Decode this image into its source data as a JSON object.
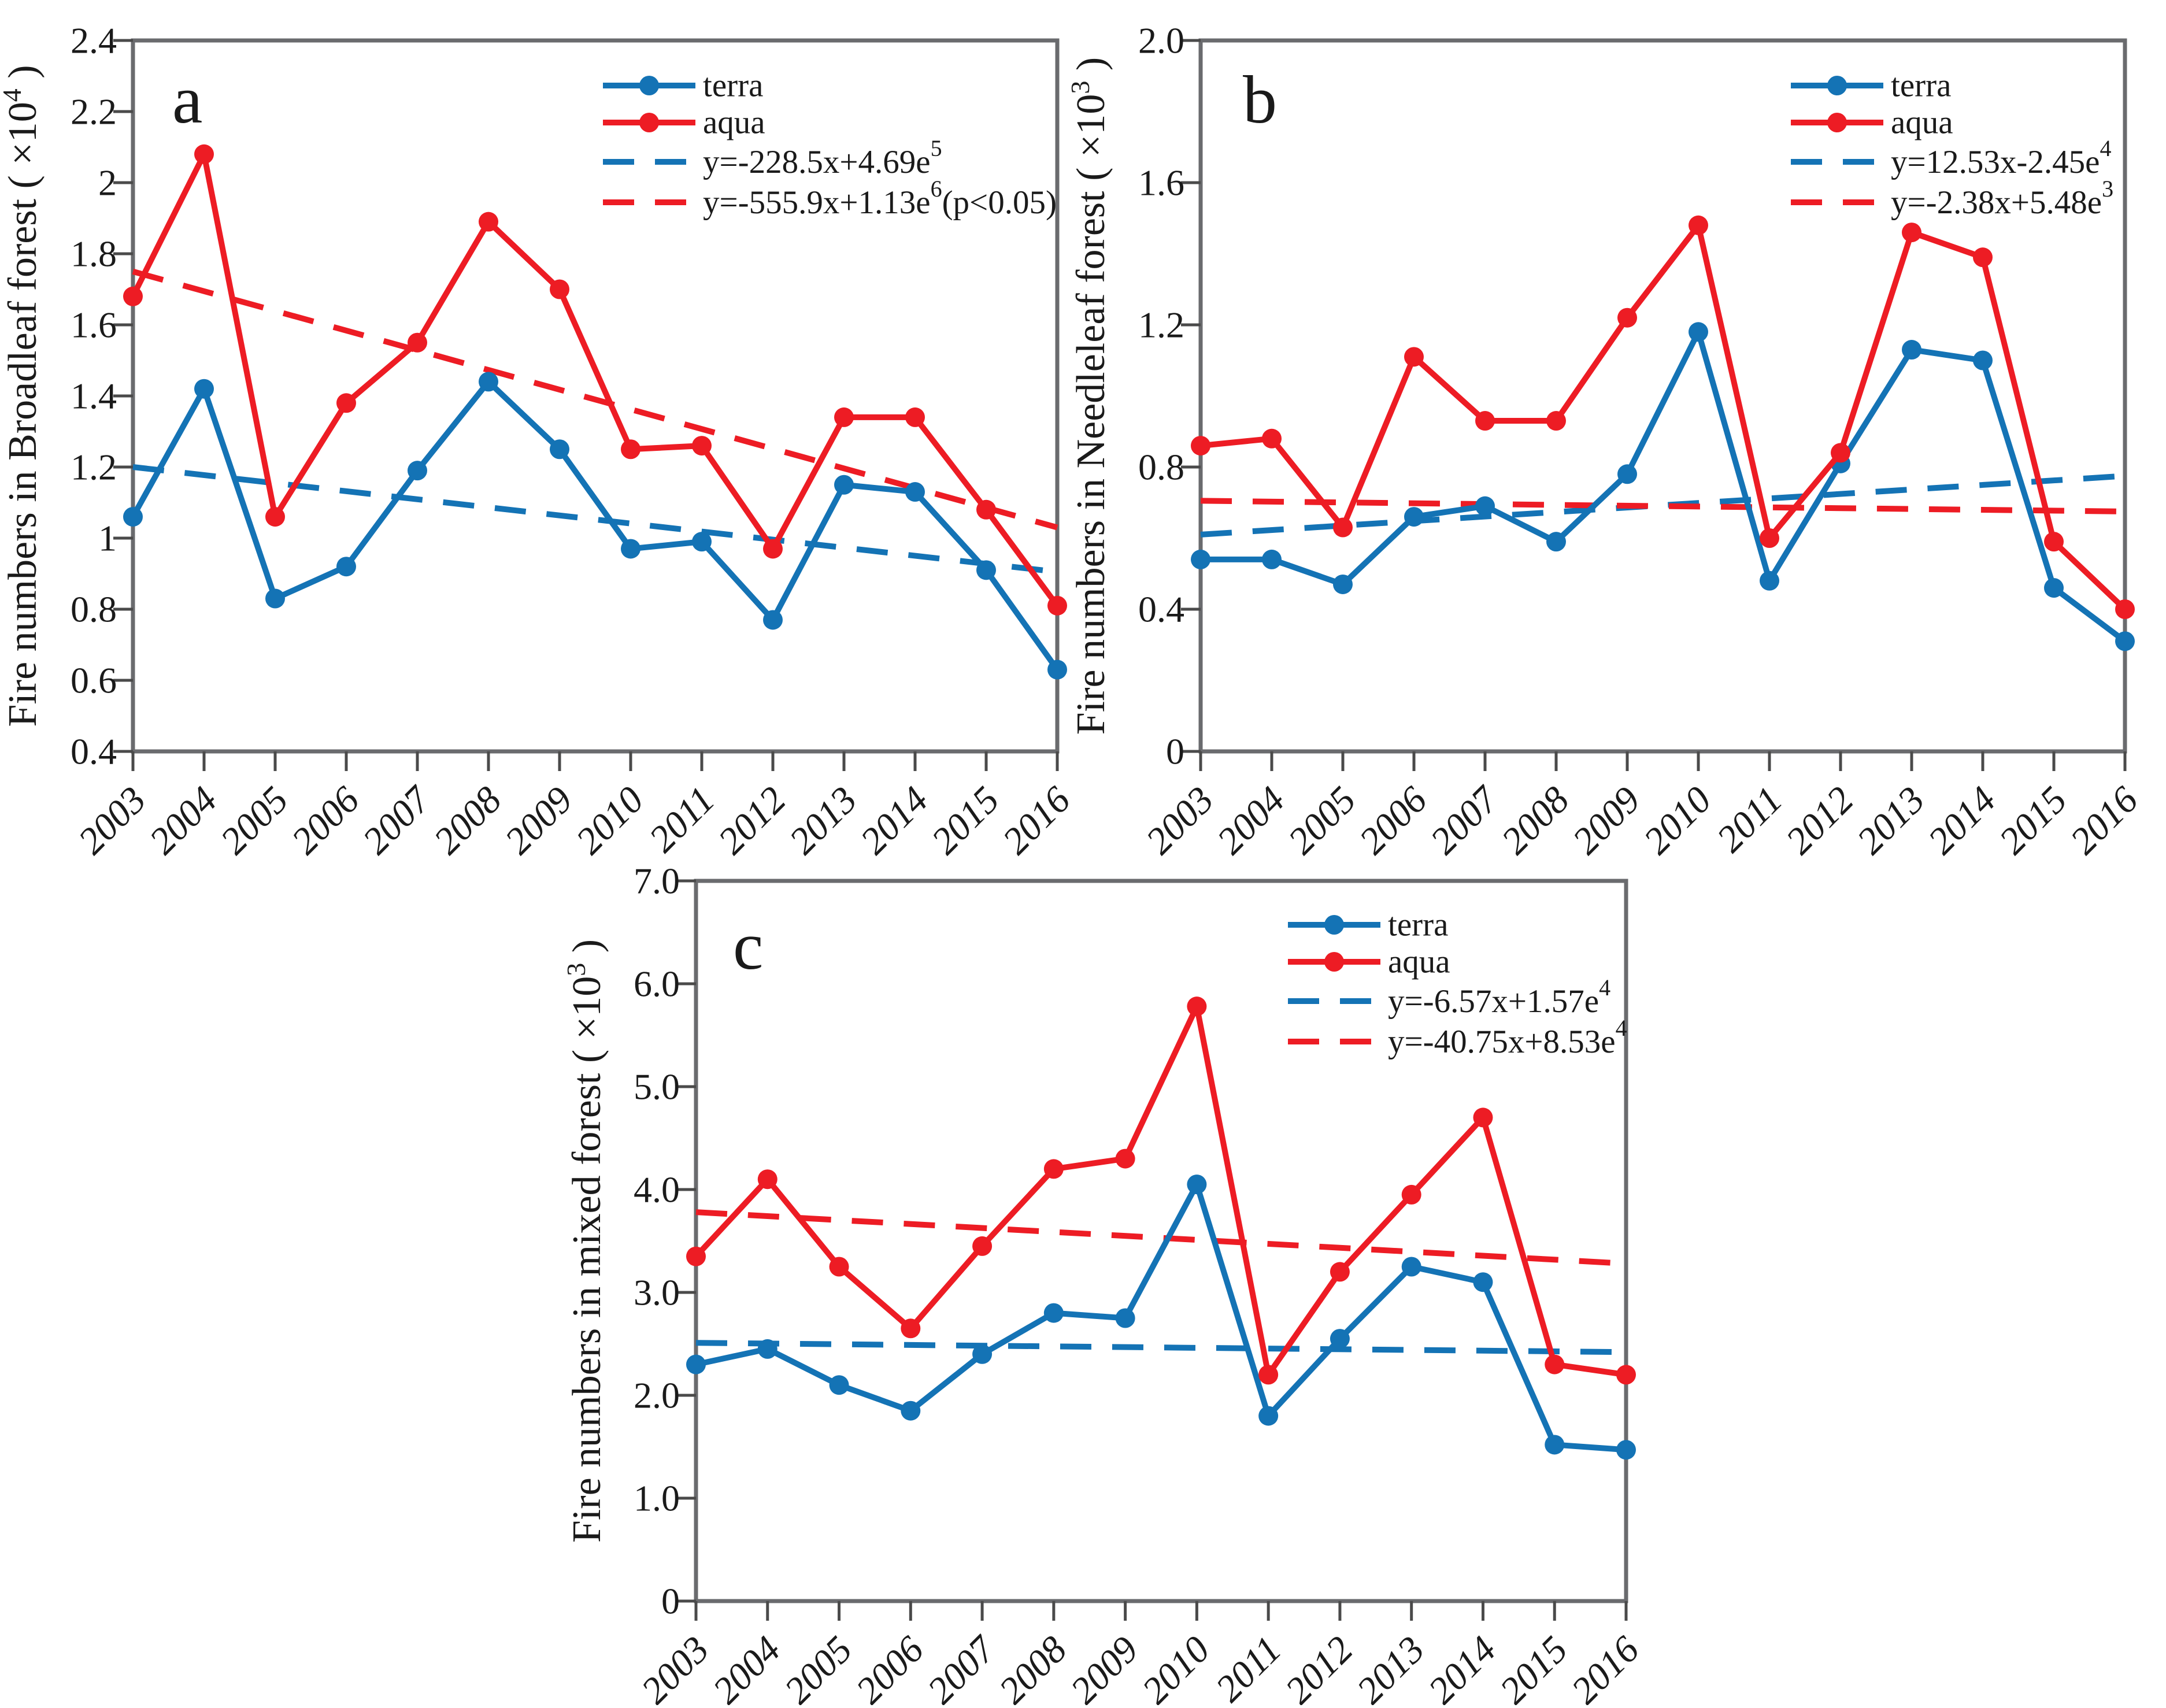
{
  "colors": {
    "terra": "#1473b5",
    "aqua": "#ed1c24",
    "axis": "#6a6b6e",
    "tick": "#4a4a4a",
    "text": "#1a1a1a"
  },
  "years": [
    "2003",
    "2004",
    "2005",
    "2006",
    "2007",
    "2008",
    "2009",
    "2010",
    "2011",
    "2012",
    "2013",
    "2014",
    "2015",
    "2016"
  ],
  "chart_data": [
    {
      "id": "a",
      "type": "line",
      "panel_label": "a",
      "ylabel": "Fire numbers  in Broadleaf forest",
      "ylabel_unit_prefix": "( ×10",
      "ylabel_unit_sup": "4",
      "ylabel_unit_suffix": " )",
      "ylim": [
        0.4,
        2.4
      ],
      "yticks": [
        {
          "v": 2.4,
          "label": "2.4"
        },
        {
          "v": 2.2,
          "label": "2.2"
        },
        {
          "v": 2.0,
          "label": "2"
        },
        {
          "v": 1.8,
          "label": "1.8"
        },
        {
          "v": 1.6,
          "label": "1.6"
        },
        {
          "v": 1.4,
          "label": "1.4"
        },
        {
          "v": 1.2,
          "label": "1.2"
        },
        {
          "v": 1.0,
          "label": "1"
        },
        {
          "v": 0.8,
          "label": "0.8"
        },
        {
          "v": 0.6,
          "label": "0.6"
        },
        {
          "v": 0.4,
          "label": "0.4"
        }
      ],
      "categories": [
        "2003",
        "2004",
        "2005",
        "2006",
        "2007",
        "2008",
        "2009",
        "2010",
        "2011",
        "2012",
        "2013",
        "2014",
        "2015",
        "2016"
      ],
      "series": [
        {
          "name": "terra",
          "color_key": "terra",
          "values": [
            1.06,
            1.42,
            0.83,
            0.92,
            1.19,
            1.44,
            1.25,
            0.97,
            0.99,
            0.77,
            1.15,
            1.13,
            0.91,
            0.63
          ]
        },
        {
          "name": "aqua",
          "color_key": "aqua",
          "values": [
            1.68,
            2.08,
            1.06,
            1.38,
            1.55,
            1.89,
            1.7,
            1.25,
            1.26,
            0.97,
            1.34,
            1.34,
            1.08,
            0.81
          ]
        }
      ],
      "trends": [
        {
          "name": "terra-trend",
          "color_key": "terra",
          "equation": "y=-228.5x+4.69e",
          "exp": "5",
          "suffix": "",
          "start": 1.2,
          "end": 0.905
        },
        {
          "name": "aqua-trend",
          "color_key": "aqua",
          "equation": "y=-555.9x+1.13e",
          "exp": "6",
          "suffix": "(p<0.05)",
          "start": 1.75,
          "end": 1.03
        }
      ],
      "legend_position": "top-right"
    },
    {
      "id": "b",
      "type": "line",
      "panel_label": "b",
      "ylabel": "Fire numbers  in Needleleaf forest",
      "ylabel_unit_prefix": "( ×10",
      "ylabel_unit_sup": "3",
      "ylabel_unit_suffix": " )",
      "ylim": [
        0,
        2.0
      ],
      "yticks": [
        {
          "v": 2.0,
          "label": "2.0"
        },
        {
          "v": 1.6,
          "label": "1.6"
        },
        {
          "v": 1.2,
          "label": "1.2"
        },
        {
          "v": 0.8,
          "label": "0.8"
        },
        {
          "v": 0.4,
          "label": "0.4"
        },
        {
          "v": 0,
          "label": "0"
        }
      ],
      "categories": [
        "2003",
        "2004",
        "2005",
        "2006",
        "2007",
        "2008",
        "2009",
        "2010",
        "2011",
        "2012",
        "2013",
        "2014",
        "2015",
        "2016"
      ],
      "series": [
        {
          "name": "terra",
          "color_key": "terra",
          "values": [
            0.54,
            0.54,
            0.47,
            0.66,
            0.69,
            0.59,
            0.78,
            1.18,
            0.48,
            0.81,
            1.13,
            1.1,
            0.46,
            0.31
          ]
        },
        {
          "name": "aqua",
          "color_key": "aqua",
          "values": [
            0.86,
            0.88,
            0.63,
            1.11,
            0.93,
            0.93,
            1.22,
            1.48,
            0.6,
            0.84,
            1.46,
            1.39,
            0.59,
            0.4
          ]
        }
      ],
      "trends": [
        {
          "name": "terra-trend",
          "color_key": "terra",
          "equation": "y=12.53x-2.45e",
          "exp": "4",
          "suffix": "",
          "start": 0.61,
          "end": 0.775
        },
        {
          "name": "aqua-trend",
          "color_key": "aqua",
          "equation": "y=-2.38x+5.48e",
          "exp": "3",
          "suffix": "",
          "start": 0.705,
          "end": 0.675
        }
      ],
      "legend_position": "top-right"
    },
    {
      "id": "c",
      "type": "line",
      "panel_label": "c",
      "ylabel": "Fire numbers  in mixed forest",
      "ylabel_unit_prefix": "( ×10",
      "ylabel_unit_sup": "3",
      "ylabel_unit_suffix": " )",
      "ylim": [
        0,
        7.0
      ],
      "yticks": [
        {
          "v": 7.0,
          "label": "7.0"
        },
        {
          "v": 6.0,
          "label": "6.0"
        },
        {
          "v": 5.0,
          "label": "5.0"
        },
        {
          "v": 4.0,
          "label": "4.0"
        },
        {
          "v": 3.0,
          "label": "3.0"
        },
        {
          "v": 2.0,
          "label": "2.0"
        },
        {
          "v": 1.0,
          "label": "1.0"
        },
        {
          "v": 0,
          "label": "0"
        }
      ],
      "categories": [
        "2003",
        "2004",
        "2005",
        "2006",
        "2007",
        "2008",
        "2009",
        "2010",
        "2011",
        "2012",
        "2013",
        "2014",
        "2015",
        "2016"
      ],
      "series": [
        {
          "name": "terra",
          "color_key": "terra",
          "values": [
            2.3,
            2.45,
            2.1,
            1.85,
            2.4,
            2.8,
            2.75,
            4.05,
            1.8,
            2.55,
            3.25,
            3.1,
            1.52,
            1.47
          ]
        },
        {
          "name": "aqua",
          "color_key": "aqua",
          "values": [
            3.35,
            4.1,
            3.25,
            2.65,
            3.45,
            4.2,
            4.3,
            5.78,
            2.2,
            3.2,
            3.95,
            4.7,
            2.3,
            2.2
          ]
        }
      ],
      "trends": [
        {
          "name": "terra-trend",
          "color_key": "terra",
          "equation": "y=-6.57x+1.57e",
          "exp": "4",
          "suffix": "",
          "start": 2.51,
          "end": 2.42
        },
        {
          "name": "aqua-trend",
          "color_key": "aqua",
          "equation": "y=-40.75x+8.53e",
          "exp": "4",
          "suffix": "",
          "start": 3.78,
          "end": 3.28
        }
      ],
      "legend_position": "top-right"
    }
  ]
}
